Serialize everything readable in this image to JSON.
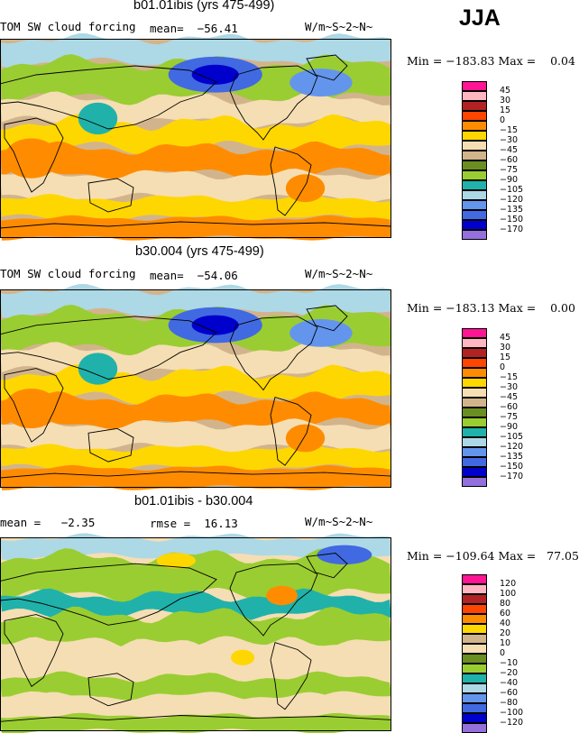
{
  "header": {
    "season": "JJA",
    "units": "W/m~S~2~N~"
  },
  "panels": [
    {
      "title": "b01.01ibis (yrs 475-499)",
      "left_label": "TOM SW cloud forcing",
      "stat": "mean=  −56.41",
      "units": "W/m~S~2~N~",
      "minmax": "Min = −183.83 Max =    0.04",
      "colorbar": {
        "labels": [
          "45",
          "30",
          "15",
          "0",
          "−15",
          "−30",
          "−45",
          "−60",
          "−75",
          "−90",
          "−105",
          "−120",
          "−135",
          "−150",
          "−170"
        ],
        "colors": [
          "#ff1493",
          "#ffb6c1",
          "#b22222",
          "#ff4500",
          "#ff8c00",
          "#ffd700",
          "#f5deb3",
          "#d2b48c",
          "#6b8e23",
          "#9acd32",
          "#20b2aa",
          "#add8e6",
          "#6495ed",
          "#4169e1",
          "#0000cd",
          "#9370db"
        ]
      },
      "map_theme": "control"
    },
    {
      "title": "b30.004 (yrs 475-499)",
      "left_label": "TOM SW cloud forcing",
      "stat": "mean=  −54.06",
      "units": "W/m~S~2~N~",
      "minmax": "Min = −183.13 Max =    0.00",
      "colorbar": {
        "labels": [
          "45",
          "30",
          "15",
          "0",
          "−15",
          "−30",
          "−45",
          "−60",
          "−75",
          "−90",
          "−105",
          "−120",
          "−135",
          "−150",
          "−170"
        ],
        "colors": [
          "#ff1493",
          "#ffb6c1",
          "#b22222",
          "#ff4500",
          "#ff8c00",
          "#ffd700",
          "#f5deb3",
          "#d2b48c",
          "#6b8e23",
          "#9acd32",
          "#20b2aa",
          "#add8e6",
          "#6495ed",
          "#4169e1",
          "#0000cd",
          "#9370db"
        ]
      },
      "map_theme": "control"
    },
    {
      "title": "b01.01ibis - b30.004",
      "left_label": "mean =   −2.35",
      "stat": "rmse =  16.13",
      "units": "W/m~S~2~N~",
      "minmax": "Min = −109.64 Max =   77.05",
      "colorbar": {
        "labels": [
          "120",
          "100",
          "80",
          "60",
          "40",
          "20",
          "10",
          "0",
          "−10",
          "−20",
          "−40",
          "−60",
          "−80",
          "−100",
          "−120"
        ],
        "colors": [
          "#ff1493",
          "#ffb6c1",
          "#b22222",
          "#ff4500",
          "#ff8c00",
          "#ffd700",
          "#d2b48c",
          "#f5deb3",
          "#6b8e23",
          "#9acd32",
          "#20b2aa",
          "#add8e6",
          "#6495ed",
          "#4169e1",
          "#0000cd",
          "#9370db"
        ]
      },
      "map_theme": "difference"
    }
  ]
}
